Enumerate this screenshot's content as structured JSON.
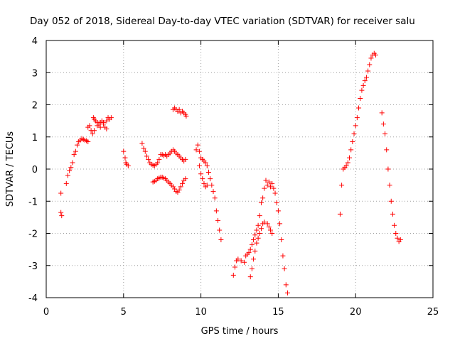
{
  "chart_data": {
    "type": "scatter",
    "title": "Day 052 of 2018, Sidereal Day-to-day VTEC variation (SDTVAR) for receiver salu",
    "xlabel": "GPS time / hours",
    "ylabel": "SDTVAR / TECUs",
    "xlim": [
      0,
      25
    ],
    "ylim": [
      -4,
      4
    ],
    "xticks": [
      0,
      5,
      10,
      15,
      20,
      25
    ],
    "yticks": [
      -4,
      -3,
      -2,
      -1,
      0,
      1,
      2,
      3,
      4
    ],
    "xtick_labels": [
      "0",
      "5",
      "10",
      "15",
      "20",
      "25"
    ],
    "ytick_labels": [
      "-4",
      "-3",
      "-2",
      "-1",
      "0",
      "1",
      "2",
      "3",
      "4"
    ],
    "grid": true,
    "marker": "+",
    "color": "#ff0000",
    "series": [
      {
        "name": "seg1",
        "x": [
          0.95,
          0.95,
          1.0
        ],
        "y": [
          -0.75,
          -1.35,
          -1.45
        ]
      },
      {
        "name": "seg2",
        "x": [
          1.3,
          1.4,
          1.5,
          1.6,
          1.7,
          1.8,
          1.9,
          2.0,
          2.1,
          2.2,
          2.3,
          2.4,
          2.5,
          2.6,
          2.7
        ],
        "y": [
          -0.45,
          -0.2,
          -0.05,
          0.05,
          0.2,
          0.45,
          0.55,
          0.75,
          0.85,
          0.9,
          0.95,
          0.92,
          0.9,
          0.88,
          0.85
        ]
      },
      {
        "name": "seg3",
        "x": [
          2.7,
          2.8,
          2.9,
          3.0,
          3.05,
          3.1,
          3.2,
          3.3,
          3.4,
          3.5,
          3.6,
          3.7,
          3.8,
          3.9,
          4.0,
          4.1,
          4.2
        ],
        "y": [
          1.3,
          1.35,
          1.2,
          1.1,
          1.6,
          1.55,
          1.5,
          1.45,
          1.4,
          1.45,
          1.5,
          1.4,
          1.3,
          1.5,
          1.6,
          1.55,
          1.6
        ]
      },
      {
        "name": "seg4",
        "x": [
          3.1,
          3.3,
          3.5,
          3.7,
          3.9
        ],
        "y": [
          1.2,
          1.35,
          1.3,
          1.45,
          1.25
        ]
      },
      {
        "name": "seg5",
        "x": [
          5.0,
          5.1,
          5.15,
          5.2,
          5.3
        ],
        "y": [
          0.55,
          0.35,
          0.2,
          0.15,
          0.1
        ]
      },
      {
        "name": "seg6",
        "x": [
          6.2,
          6.3,
          6.4,
          6.5,
          6.6,
          6.7,
          6.8,
          6.9,
          7.0,
          7.1,
          7.2,
          7.3,
          7.4,
          7.5,
          7.6,
          7.7,
          7.8,
          7.9,
          8.0,
          8.1,
          8.2,
          8.3,
          8.4,
          8.5,
          8.6,
          8.7,
          8.8,
          8.9,
          9.0
        ],
        "y": [
          0.8,
          0.65,
          0.55,
          0.4,
          0.3,
          0.2,
          0.15,
          0.12,
          0.1,
          0.15,
          0.2,
          0.3,
          0.45,
          0.45,
          0.42,
          0.45,
          0.4,
          0.45,
          0.5,
          0.55,
          0.6,
          0.55,
          0.5,
          0.45,
          0.4,
          0.35,
          0.3,
          0.25,
          0.3
        ]
      },
      {
        "name": "seg7",
        "x": [
          6.9,
          7.0,
          7.1,
          7.2,
          7.3,
          7.4,
          7.5,
          7.6,
          7.7,
          7.8,
          7.9,
          8.0,
          8.1,
          8.2,
          8.3,
          8.4,
          8.5,
          8.6,
          8.7,
          8.8,
          8.9,
          9.0
        ],
        "y": [
          -0.4,
          -0.38,
          -0.35,
          -0.3,
          -0.28,
          -0.25,
          -0.25,
          -0.28,
          -0.3,
          -0.35,
          -0.4,
          -0.45,
          -0.5,
          -0.55,
          -0.62,
          -0.7,
          -0.72,
          -0.65,
          -0.55,
          -0.45,
          -0.35,
          -0.3
        ]
      },
      {
        "name": "seg8",
        "x": [
          8.2,
          8.3,
          8.4,
          8.5,
          8.6,
          8.7,
          8.8,
          8.9,
          9.0,
          9.05
        ],
        "y": [
          1.85,
          1.9,
          1.85,
          1.8,
          1.85,
          1.75,
          1.8,
          1.75,
          1.7,
          1.65
        ]
      },
      {
        "name": "seg9",
        "x": [
          9.7,
          9.8,
          9.9,
          10.0,
          10.1,
          10.2,
          10.3,
          10.4,
          10.5,
          10.6,
          10.7,
          10.8,
          10.9,
          11.0,
          11.1,
          11.2,
          11.3
        ],
        "y": [
          0.6,
          0.75,
          0.55,
          0.35,
          0.3,
          0.25,
          0.2,
          0.1,
          -0.1,
          -0.3,
          -0.5,
          -0.7,
          -0.9,
          -1.3,
          -1.6,
          -1.9,
          -2.2
        ]
      },
      {
        "name": "seg10",
        "x": [
          9.9,
          10.0,
          10.1,
          10.2,
          10.3,
          10.4
        ],
        "y": [
          0.1,
          -0.15,
          -0.3,
          -0.45,
          -0.55,
          -0.5
        ]
      },
      {
        "name": "seg11",
        "x": [
          12.1,
          12.2,
          12.3,
          12.4,
          12.6,
          12.8,
          12.9,
          13.0,
          13.1,
          13.2,
          13.3,
          13.4,
          13.5,
          13.6,
          13.7,
          13.8,
          13.9,
          14.0,
          14.1,
          14.2
        ],
        "y": [
          -3.3,
          -3.05,
          -2.85,
          -2.8,
          -2.85,
          -2.9,
          -2.7,
          -2.65,
          -2.6,
          -2.5,
          -2.35,
          -2.2,
          -2.05,
          -1.9,
          -1.75,
          -1.45,
          -1.05,
          -0.9,
          -0.6,
          -0.35
        ]
      },
      {
        "name": "seg12",
        "x": [
          13.2,
          13.3,
          13.4,
          13.5,
          13.6,
          13.7,
          13.8,
          13.9,
          14.0,
          14.1
        ],
        "y": [
          -3.35,
          -3.1,
          -2.8,
          -2.55,
          -2.3,
          -2.15,
          -2.0,
          -1.85,
          -1.7,
          -1.65
        ]
      },
      {
        "name": "seg13",
        "x": [
          14.3,
          14.4,
          14.5,
          14.6,
          14.7,
          14.8,
          14.9,
          15.0,
          15.1,
          15.2,
          15.3,
          15.4,
          15.5,
          15.6
        ],
        "y": [
          -0.5,
          -0.4,
          -0.55,
          -0.45,
          -0.6,
          -0.75,
          -1.05,
          -1.3,
          -1.7,
          -2.2,
          -2.7,
          -3.1,
          -3.6,
          -3.85
        ]
      },
      {
        "name": "seg14",
        "x": [
          14.3,
          14.4,
          14.5,
          14.6
        ],
        "y": [
          -1.7,
          -1.8,
          -1.9,
          -2.0
        ]
      },
      {
        "name": "seg15",
        "x": [
          19.0,
          19.1,
          19.2,
          19.3,
          19.4,
          19.5,
          19.6,
          19.7,
          19.8,
          19.9,
          20.0,
          20.1,
          20.2,
          20.3,
          20.4,
          20.5,
          20.6,
          20.7,
          20.8,
          20.9,
          21.0,
          21.1,
          21.2,
          21.3
        ],
        "y": [
          -1.4,
          -0.5,
          0.0,
          0.05,
          0.1,
          0.2,
          0.35,
          0.6,
          0.85,
          1.1,
          1.35,
          1.6,
          1.9,
          2.2,
          2.45,
          2.6,
          2.75,
          2.85,
          3.05,
          3.25,
          3.45,
          3.55,
          3.6,
          3.55
        ]
      },
      {
        "name": "seg16",
        "x": [
          21.7,
          21.8,
          21.9,
          22.0,
          22.1,
          22.2,
          22.3,
          22.4,
          22.5,
          22.6,
          22.7,
          22.8,
          22.9
        ],
        "y": [
          1.75,
          1.4,
          1.1,
          0.6,
          0.0,
          -0.5,
          -1.0,
          -1.4,
          -1.75,
          -2.0,
          -2.15,
          -2.25,
          -2.2
        ]
      }
    ]
  }
}
